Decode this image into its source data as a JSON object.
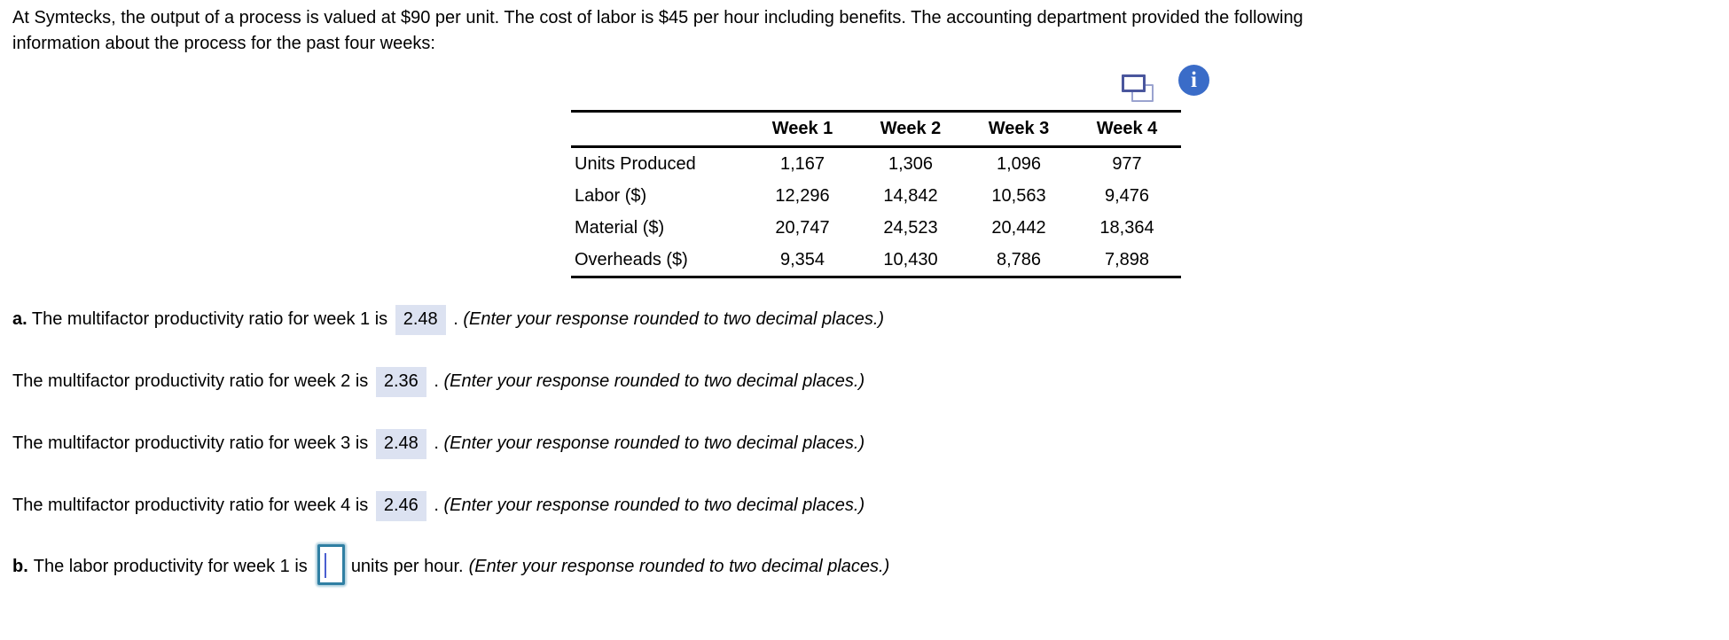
{
  "colors": {
    "answer_highlight": "#dce2f1",
    "info_icon_blue": "#3a6cc8",
    "duplicate_icon_front": "#4a569d",
    "duplicate_icon_back": "#9aa3cf",
    "input_border_teal": "#2f7fa3",
    "caret_blue": "#4a5fd0",
    "table_rule": "#000000"
  },
  "intro": {
    "line1": "At Symtecks, the output of a process is valued at $90 per unit. The cost of labor is $45 per hour including benefits. The accounting department provided the following",
    "line2": "information about the process for the past four weeks:"
  },
  "icons": {
    "duplicate": "duplicate-icon",
    "info": "info-icon",
    "info_glyph": "i"
  },
  "table": {
    "col_headers": [
      "",
      "Week 1",
      "Week 2",
      "Week 3",
      "Week 4"
    ],
    "rows": [
      {
        "label": "Units Produced",
        "values": [
          "1,167",
          "1,306",
          "1,096",
          "977"
        ]
      },
      {
        "label": "Labor ($)",
        "values": [
          "12,296",
          "14,842",
          "10,563",
          "9,476"
        ]
      },
      {
        "label": "Material ($)",
        "values": [
          "20,747",
          "24,523",
          "20,442",
          "18,364"
        ]
      },
      {
        "label": "Overheads ($)",
        "values": [
          "9,354",
          "10,430",
          "8,786",
          "7,898"
        ]
      }
    ]
  },
  "questions": [
    {
      "prefix": "a.",
      "text": "The multifactor productivity ratio for week 1 is",
      "answer": "2.48",
      "suffix": ".",
      "note": "(Enter your response rounded to two decimal places.)"
    },
    {
      "prefix": "",
      "text": "The multifactor productivity ratio for week 2 is",
      "answer": "2.36",
      "suffix": ".",
      "note": "(Enter your response rounded to two decimal places.)"
    },
    {
      "prefix": "",
      "text": "The multifactor productivity ratio for week 3 is",
      "answer": "2.48",
      "suffix": ".",
      "note": "(Enter your response rounded to two decimal places.)"
    },
    {
      "prefix": "",
      "text": "The multifactor productivity ratio for week 4 is",
      "answer": "2.46",
      "suffix": ".",
      "note": "(Enter your response rounded to two decimal places.)"
    }
  ],
  "question_b": {
    "prefix": "b.",
    "text": "The labor productivity for week 1 is",
    "input_value": "",
    "after_input": "units per hour.",
    "note": "(Enter your response rounded to two decimal places.)"
  }
}
